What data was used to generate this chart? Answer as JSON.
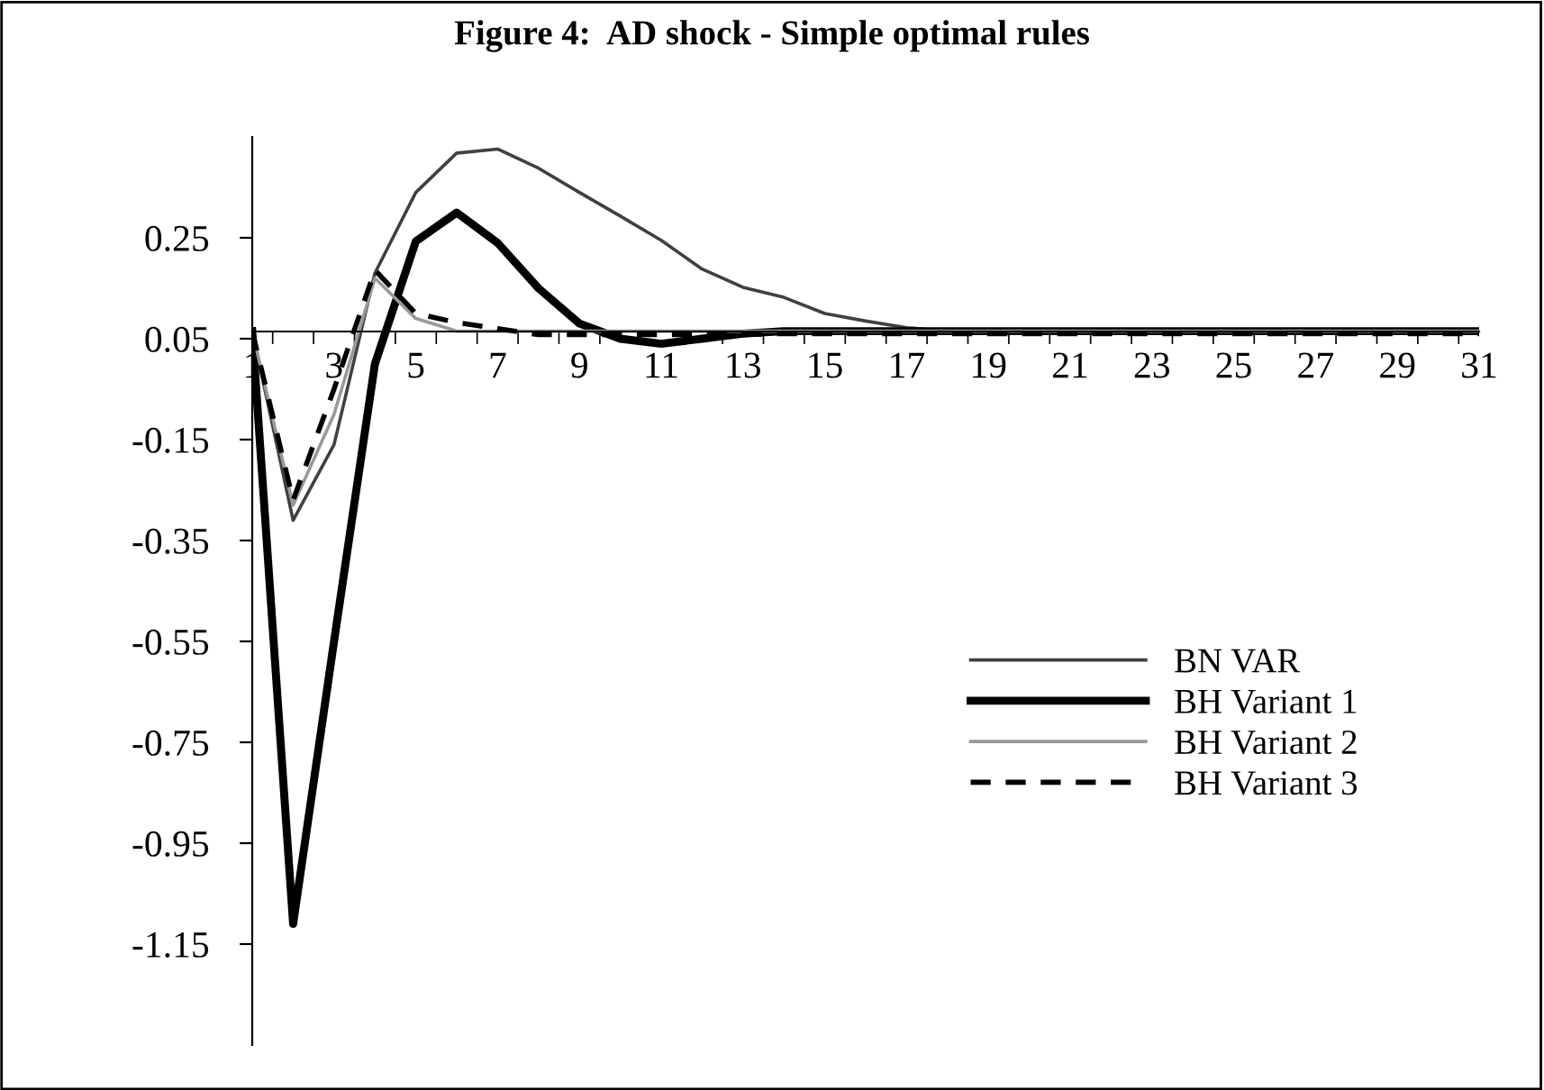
{
  "chart_data": {
    "type": "line",
    "title": "Figure 4:  AD shock - Simple optimal rules",
    "categories": [
      "1",
      null,
      "3",
      null,
      "5",
      null,
      "7",
      null,
      "9",
      null,
      "11",
      null,
      "13",
      null,
      "15",
      null,
      "17",
      null,
      "19",
      null,
      "21",
      null,
      "23",
      null,
      "25",
      null,
      "27",
      null,
      "29",
      null,
      "31"
    ],
    "series": [
      {
        "name": "BN VAR",
        "color": "#404040",
        "line_style": "solid",
        "values": [
          0.065,
          -0.31,
          -0.16,
          0.18,
          0.34,
          0.418,
          0.426,
          0.388,
          0.34,
          0.293,
          0.245,
          0.188,
          0.152,
          0.132,
          0.1,
          0.085,
          0.072,
          0.065,
          0.065,
          0.065,
          0.065,
          0.065,
          0.065,
          0.065,
          0.065,
          0.065,
          0.065,
          0.065,
          0.065,
          0.065,
          0.065
        ]
      },
      {
        "name": "BH Variant 1",
        "color": "#000000",
        "line_style": "solid",
        "values": [
          0.065,
          -1.11,
          -0.55,
          0.0,
          0.243,
          0.3,
          0.24,
          0.15,
          0.08,
          0.05,
          0.04,
          0.05,
          0.06,
          0.065,
          0.065,
          0.065,
          0.065,
          0.065,
          0.065,
          0.065,
          0.065,
          0.065,
          0.065,
          0.065,
          0.065,
          0.065,
          0.065,
          0.065,
          0.065,
          0.065,
          0.065
        ]
      },
      {
        "name": "BH Variant 2",
        "color": "#999999",
        "line_style": "solid",
        "values": [
          0.065,
          -0.28,
          -0.1,
          0.17,
          0.09,
          0.065,
          0.065,
          0.065,
          0.065,
          0.065,
          0.065,
          0.065,
          0.065,
          0.065,
          0.065,
          0.065,
          0.065,
          0.065,
          0.065,
          0.065,
          0.065,
          0.065,
          0.065,
          0.065,
          0.065,
          0.065,
          0.065,
          0.065,
          0.065,
          0.065,
          0.065
        ]
      },
      {
        "name": "BH Variant 3",
        "color": "#000000",
        "line_style": "dashed",
        "values": [
          0.065,
          -0.27,
          -0.05,
          0.186,
          0.1,
          0.082,
          0.07,
          0.058,
          0.058,
          0.058,
          0.058,
          0.058,
          0.058,
          0.06,
          0.06,
          0.06,
          0.06,
          0.06,
          0.06,
          0.06,
          0.06,
          0.06,
          0.06,
          0.06,
          0.06,
          0.06,
          0.06,
          0.06,
          0.06,
          0.06,
          0.06
        ]
      }
    ],
    "ylim": [
      -1.35,
      0.45
    ],
    "yticks": [
      -1.15,
      -0.95,
      -0.75,
      -0.55,
      -0.35,
      -0.15,
      0.05,
      0.25
    ],
    "grid": false,
    "legend": "right",
    "marker": "none"
  }
}
